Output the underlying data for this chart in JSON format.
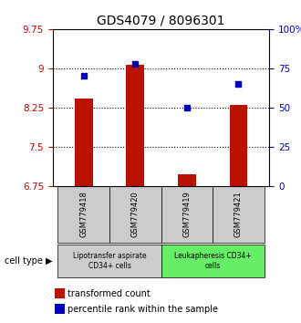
{
  "title": "GDS4079 / 8096301",
  "samples": [
    "GSM779418",
    "GSM779420",
    "GSM779419",
    "GSM779421"
  ],
  "transformed_count": [
    8.42,
    9.07,
    6.97,
    8.3
  ],
  "percentile_rank": [
    70,
    78,
    50,
    65
  ],
  "ylim_left": [
    6.75,
    9.75
  ],
  "ylim_right": [
    0,
    100
  ],
  "yticks_left": [
    6.75,
    7.5,
    8.25,
    9.0,
    9.75
  ],
  "ytick_labels_left": [
    "6.75",
    "7.5",
    "8.25",
    "9",
    "9.75"
  ],
  "yticks_right": [
    0,
    25,
    50,
    75,
    100
  ],
  "ytick_labels_right": [
    "0",
    "25",
    "50",
    "75",
    "100%"
  ],
  "bar_color": "#bb1100",
  "dot_color": "#0000bb",
  "bar_bottom": 6.75,
  "bar_width": 0.35,
  "groups": [
    {
      "label": "Lipotransfer aspirate\nCD34+ cells",
      "start": 0,
      "end": 2,
      "color": "#cccccc"
    },
    {
      "label": "Leukapheresis CD34+\ncells",
      "start": 2,
      "end": 4,
      "color": "#66ee66"
    }
  ],
  "cell_type_label": "cell type",
  "legend_bar_label": "transformed count",
  "legend_dot_label": "percentile rank within the sample",
  "background_color": "#ffffff",
  "title_fontsize": 10,
  "tick_fontsize": 7.5,
  "gridline_ticks": [
    7.5,
    8.25,
    9.0
  ]
}
